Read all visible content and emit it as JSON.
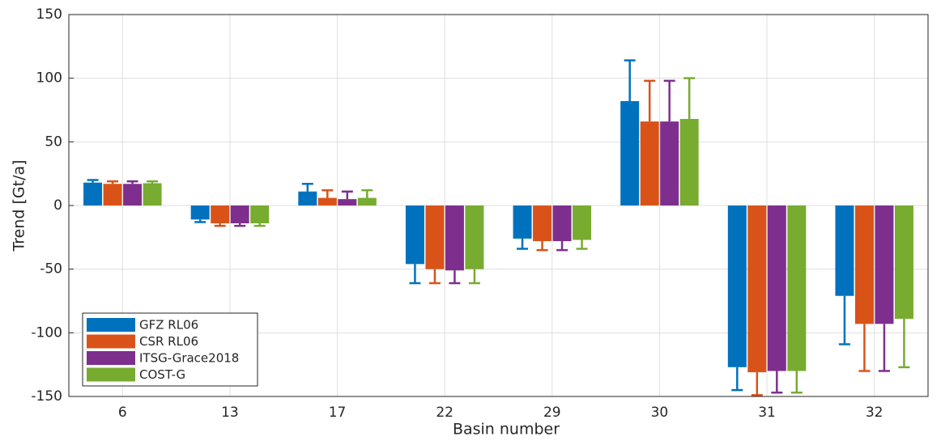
{
  "chart_data": {
    "type": "bar",
    "xlabel": "Basin number",
    "ylabel": "Trend [Gt/a]",
    "categories": [
      "6",
      "13",
      "17",
      "22",
      "29",
      "30",
      "31",
      "32"
    ],
    "series": [
      {
        "name": "GFZ RL06",
        "color": "#0072bd",
        "values": [
          18,
          -11,
          11,
          -46,
          -26,
          82,
          -127,
          -71
        ],
        "errors": [
          2,
          2,
          6,
          15,
          8,
          32,
          18,
          38
        ]
      },
      {
        "name": "CSR RL06",
        "color": "#d95319",
        "values": [
          17,
          -14,
          6,
          -50,
          -28,
          66,
          -131,
          -93
        ],
        "errors": [
          2,
          2,
          6,
          11,
          7,
          32,
          18,
          37
        ]
      },
      {
        "name": "ITSG-Grace2018",
        "color": "#7e2f8e",
        "values": [
          17,
          -14,
          5,
          -51,
          -28,
          66,
          -130,
          -93
        ],
        "errors": [
          2,
          2,
          6,
          10,
          7,
          32,
          17,
          37
        ]
      },
      {
        "name": "COST-G",
        "color": "#77ac30",
        "values": [
          17.5,
          -14,
          6,
          -50,
          -27,
          68,
          -130,
          -89
        ],
        "errors": [
          1.5,
          2,
          6,
          11,
          7,
          32,
          17,
          38
        ]
      }
    ],
    "ylim": [
      -150,
      150
    ],
    "yticks": [
      -150,
      -100,
      -50,
      0,
      50,
      100,
      150
    ],
    "grid": true,
    "legend": "lower left"
  }
}
